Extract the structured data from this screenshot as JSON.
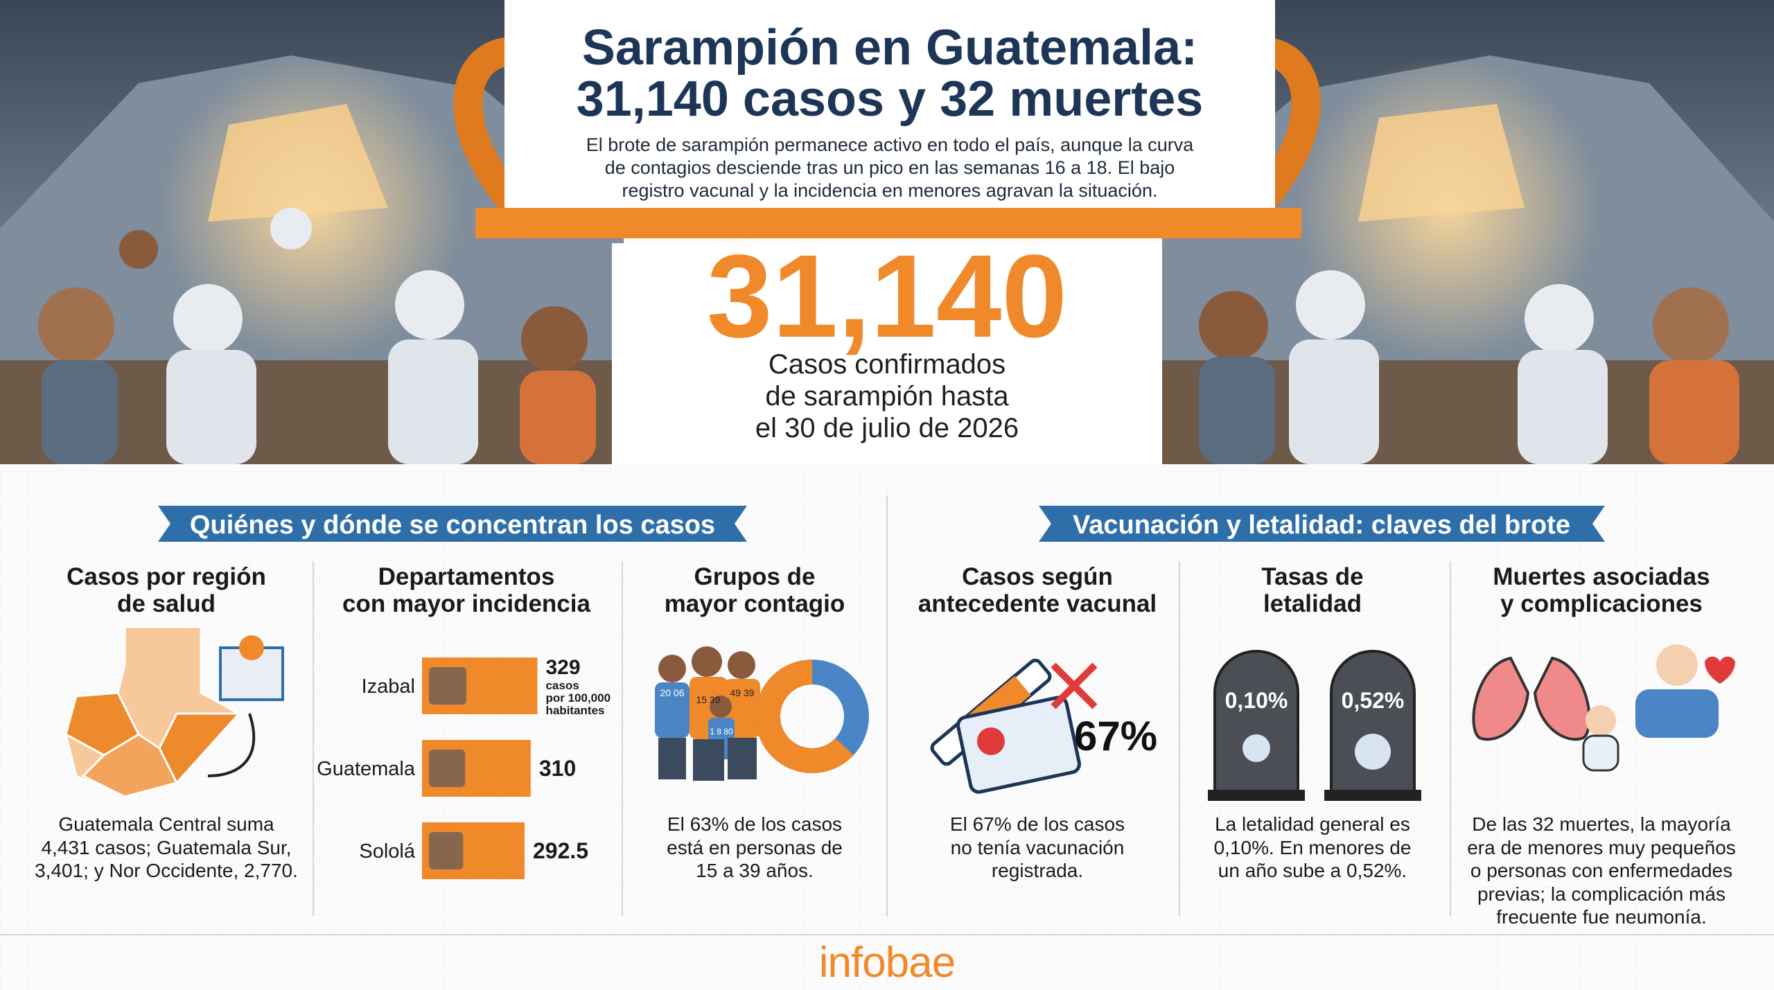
{
  "header": {
    "title": [
      "Sarampión en Guatemala:",
      "31,140 casos y 32 muertes"
    ],
    "lead": [
      "El brote de sarampión permanece activo en todo el país, aunque la curva",
      "de contagios desciende tras un pico en las semanas 16 a 18. El bajo",
      "registro vacunal y la incidencia en menores agravan la situación."
    ]
  },
  "hero": {
    "figure": "31,140",
    "caption": [
      "Casos confirmados",
      "de sarampión hasta",
      "el 30 de julio de 2026"
    ]
  },
  "sections": [
    {
      "heading": "Quiénes y dónde se concentran los casos",
      "panels": [
        {
          "title": [
            "Casos por región",
            "de salud"
          ],
          "text": [
            "Guatemala Central suma",
            "4,431 casos; Guatemala Sur,",
            "3,401; y Nor Occidente, 2,770."
          ]
        },
        {
          "title": [
            "Departamentos",
            "con mayor incidencia"
          ],
          "chart_data": {
            "type": "bar",
            "categories": [
              "Izabal",
              "Guatemala",
              "Sololá"
            ],
            "values": [
              329,
              310,
              292.5
            ],
            "unit": [
              "casos",
              "por 100,000",
              "habitantes"
            ],
            "color": "#f0892a"
          }
        },
        {
          "title": [
            "Grupos de",
            "mayor contagio"
          ],
          "shirt_labels": [
            "20 06",
            "15 39",
            "49 39",
            "1 8 80"
          ],
          "chart_data": {
            "type": "pie",
            "values": [
              63
            ],
            "color": "#f0892a",
            "rest_color": "#4a86c5"
          },
          "text": [
            "El 63% de los casos",
            "está en personas de",
            "15 a 39 años."
          ]
        }
      ]
    },
    {
      "heading": "Vacunación y letalidad: claves del brote",
      "panels": [
        {
          "title": [
            "Casos según",
            "antecedente vacunal"
          ],
          "figure": "67%",
          "text": [
            "El 67% de los casos",
            "no tenía vacunación",
            "registrada."
          ]
        },
        {
          "title": [
            "Tasas de",
            "letalidad"
          ],
          "rates": [
            "0,10%",
            "0,52%"
          ],
          "text": [
            "La letalidad general es",
            "0,10%. En menores de",
            "un año sube a 0,52%."
          ]
        },
        {
          "title": [
            "Muertes asociadas",
            "y complicaciones"
          ],
          "text": [
            "De las 32 muertes, la mayoría",
            "era de menores muy pequeños",
            "o personas con enfermedades",
            "previas; la complicación más",
            "frecuente fue neumonía."
          ]
        }
      ]
    }
  ],
  "footer": {
    "brand": "infobae"
  }
}
